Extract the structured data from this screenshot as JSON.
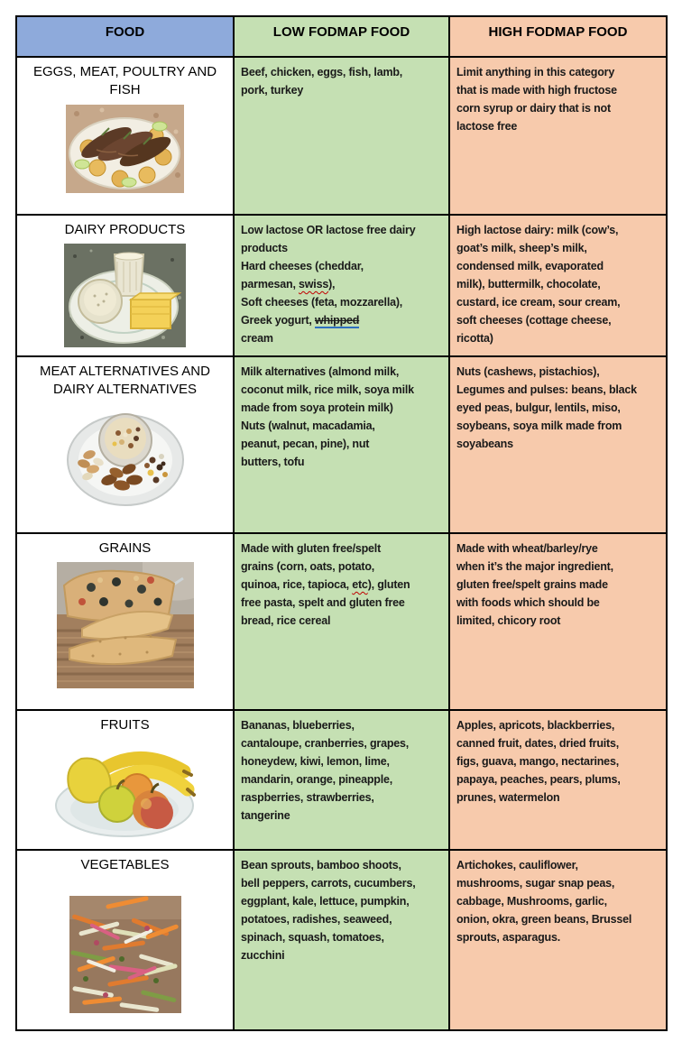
{
  "colors": {
    "header_food_bg": "#8EAADB",
    "low_column_bg": "#C5E0B3",
    "high_column_bg": "#F7CAAC",
    "border": "#000000",
    "spellcheck_squiggle": "#C00000",
    "grammar_underline": "#2E6FC0"
  },
  "header": {
    "food": "FOOD",
    "low": "LOW FODMAP FOOD",
    "high": "HIGH FODMAP FOOD"
  },
  "rows": [
    {
      "category": "EGGS, MEAT, POULTRY AND FISH",
      "image_alt": "plate of cooked fish with roasted potatoes and lime",
      "low": "Beef, chicken, eggs, fish, lamb,\npork, turkey",
      "high": "Limit anything in this category\nthat is made with high fructose\ncorn syrup or dairy that is not\nlactose free"
    },
    {
      "category": "DAIRY PRODUCTS",
      "image_alt": "plate with glass of milk, bowl of yogurt and cheese slices",
      "low_segments": [
        {
          "text": "Low lactose OR lactose free dairy\nproducts\nHard cheeses (cheddar,\nparmesan, "
        },
        {
          "text": "swiss",
          "mark": "spell"
        },
        {
          "text": "),\nSoft cheeses (feta, mozzarella),\nGreek yogurt, "
        },
        {
          "text": "whipped",
          "mark": "strike-grammar"
        },
        {
          "text": "\ncream"
        }
      ],
      "high": "High lactose dairy: milk (cow’s,\ngoat’s milk, sheep’s milk,\ncondensed milk, evaporated\nmilk), buttermilk, chocolate,\ncustard, ice cream, sour cream,\nsoft cheeses (cottage cheese,\nricotta)"
    },
    {
      "category": "MEAT ALTERNATIVES AND DAIRY ALTERNATIVES",
      "image_alt": "plate of mixed nuts with bowl of granola and trail mix",
      "low": "Milk alternatives (almond milk,\ncoconut milk, rice milk, soya milk\nmade from soya protein milk)\nNuts (walnut, macadamia,\npeanut, pecan, pine), nut\nbutters, tofu",
      "high": "Nuts (cashews, pistachios),\nLegumes and pulses: beans, black\neyed peas, bulgur, lentils, miso,\nsoybeans, soya milk made from\nsoyabeans"
    },
    {
      "category": "GRAINS",
      "image_alt": "focaccia bread slices with olives on a cooling rack",
      "low_segments": [
        {
          "text": "Made with gluten free/spelt\ngrains (corn, oats, potato,\nquinoa, rice, tapioca, "
        },
        {
          "text": "etc",
          "mark": "spell"
        },
        {
          "text": "), gluten\nfree pasta, spelt and gluten free\nbread, rice cereal"
        }
      ],
      "high": "Made with wheat/barley/rye\nwhen it’s the major ingredient,\ngluten free/spelt grains made\nwith foods which should be\nlimited, chicory root"
    },
    {
      "category": "FRUITS",
      "image_alt": "glass plate with bananas, apples, orange and papaya",
      "low": "Bananas, blueberries,\ncantaloupe, cranberries, grapes,\nhoneydew, kiwi, lemon, lime,\nmandarin, orange, pineapple,\nraspberries, strawberries,\ntangerine",
      "high": "Apples, apricots, blackberries,\ncanned fruit, dates, dried fruits,\nfigs, guava, mango, nectarines,\npapaya, peaches, pears, plums,\nprunes, watermelon"
    },
    {
      "category": "VEGETABLES",
      "image_alt": "shredded vegetable slaw with carrot, zucchini and radish",
      "low": "Bean sprouts, bamboo shoots,\nbell peppers, carrots, cucumbers,\neggplant, kale, lettuce, pumpkin,\npotatoes, radishes, seaweed,\nspinach, squash, tomatoes,\nzucchini",
      "high": "Artichokes, cauliflower,\nmushrooms, sugar snap peas,\ncabbage, Mushrooms, garlic,\nonion, okra, green beans, Brussel\nsprouts, asparagus."
    }
  ]
}
